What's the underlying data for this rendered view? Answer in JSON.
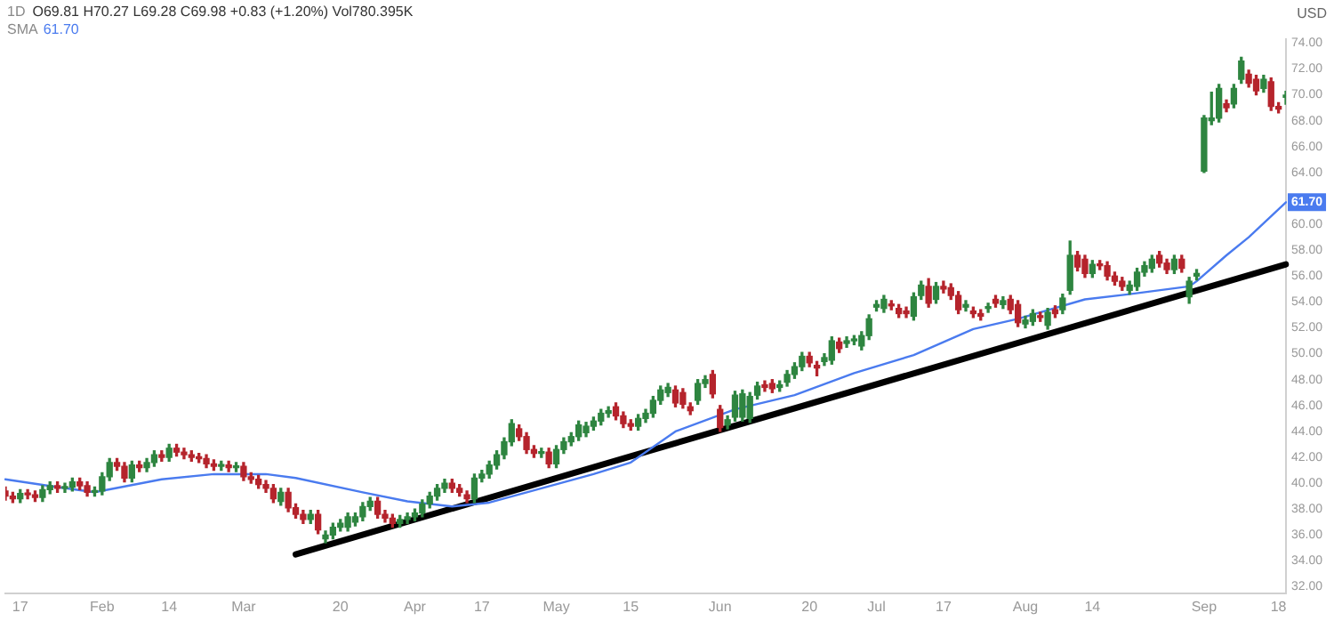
{
  "chart_data": {
    "type": "candlestick",
    "title": "1D",
    "subtitle": "O69.81 H70.27 L69.28 C69.98 +0.83 (+1.20%) Vol780.395K",
    "ylabel": "USD",
    "categories": [
      null,
      null,
      "17",
      null,
      null,
      null,
      null,
      null,
      null,
      null,
      null,
      null,
      null,
      "Feb",
      null,
      null,
      null,
      null,
      null,
      null,
      null,
      null,
      "14",
      null,
      null,
      null,
      null,
      null,
      null,
      null,
      null,
      null,
      "Mar",
      null,
      null,
      null,
      null,
      null,
      null,
      null,
      null,
      null,
      null,
      null,
      null,
      "20",
      null,
      null,
      null,
      null,
      null,
      null,
      null,
      null,
      null,
      "Apr",
      null,
      null,
      null,
      null,
      null,
      null,
      null,
      null,
      "17",
      null,
      null,
      null,
      null,
      null,
      null,
      null,
      null,
      null,
      "May",
      null,
      null,
      null,
      null,
      null,
      null,
      null,
      null,
      null,
      "15",
      null,
      null,
      null,
      null,
      null,
      null,
      null,
      null,
      null,
      null,
      null,
      "Jun",
      null,
      null,
      null,
      null,
      null,
      null,
      null,
      null,
      null,
      null,
      null,
      "20",
      null,
      null,
      null,
      null,
      null,
      null,
      null,
      null,
      "Jul",
      null,
      null,
      null,
      null,
      null,
      null,
      null,
      null,
      "17",
      null,
      null,
      null,
      null,
      null,
      null,
      null,
      null,
      null,
      null,
      "Aug",
      null,
      null,
      null,
      null,
      null,
      null,
      null,
      null,
      "14",
      null,
      null,
      null,
      null,
      null,
      null,
      null,
      null,
      null,
      null,
      null,
      null,
      null,
      null,
      "Sep",
      null,
      null,
      null,
      null,
      null,
      null,
      null,
      null,
      null,
      "18",
      null
    ],
    "ylim": [
      31.5,
      74.3
    ],
    "yticks": [
      {
        "value": 32,
        "label": "32.00"
      },
      {
        "value": 34,
        "label": "34.00"
      },
      {
        "value": 36,
        "label": "36.00"
      },
      {
        "value": 38,
        "label": "38.00"
      },
      {
        "value": 40,
        "label": "40.00"
      },
      {
        "value": 42,
        "label": "42.00"
      },
      {
        "value": 44,
        "label": "44.00"
      },
      {
        "value": 46,
        "label": "46.00"
      },
      {
        "value": 48,
        "label": "48.00"
      },
      {
        "value": 50,
        "label": "50.00"
      },
      {
        "value": 52,
        "label": "52.00"
      },
      {
        "value": 54,
        "label": "54.00"
      },
      {
        "value": 56,
        "label": "56.00"
      },
      {
        "value": 58,
        "label": "58.00"
      },
      {
        "value": 60,
        "label": "60.00"
      },
      {
        "value": 64,
        "label": "64.00"
      },
      {
        "value": 66,
        "label": "66.00"
      },
      {
        "value": 68,
        "label": "68.00"
      },
      {
        "value": 70,
        "label": "70.00"
      },
      {
        "value": 72,
        "label": "72.00"
      },
      {
        "value": 74,
        "label": "74.00"
      }
    ],
    "grid": false,
    "legend": "top left",
    "series": [
      {
        "type": "line",
        "name": "SMA",
        "color": "#4a7bef",
        "values": [
          40.3,
          null,
          null,
          null,
          null,
          null,
          null,
          39.7,
          null,
          null,
          null,
          null,
          39.3,
          null,
          null,
          null,
          null,
          null,
          null,
          null,
          null,
          40.3,
          null,
          null,
          null,
          null,
          null,
          null,
          40.7,
          null,
          null,
          null,
          null,
          null,
          null,
          40.7,
          null,
          null,
          null,
          40.4,
          null,
          null,
          null,
          null,
          null,
          null,
          null,
          null,
          39.3,
          null,
          null,
          null,
          null,
          null,
          38.6,
          null,
          null,
          null,
          null,
          null,
          38.2,
          null,
          null,
          null,
          null,
          38.5,
          null,
          null,
          null,
          null,
          null,
          null,
          39.6,
          null,
          null,
          null,
          null,
          null,
          null,
          40.7,
          null,
          null,
          null,
          null,
          41.6,
          null,
          null,
          null,
          null,
          null,
          44.0,
          null,
          null,
          null,
          null,
          null,
          null,
          null,
          45.7,
          null,
          null,
          null,
          null,
          null,
          null,
          null,
          46.8,
          null,
          null,
          null,
          null,
          null,
          null,
          null,
          48.5,
          null,
          null,
          null,
          null,
          null,
          null,
          null,
          49.9,
          null,
          null,
          null,
          null,
          null,
          null,
          null,
          51.9,
          null,
          null,
          null,
          null,
          null,
          52.7,
          null,
          null,
          null,
          null,
          null,
          null,
          null,
          null,
          54.2,
          null,
          null,
          null,
          null,
          null,
          54.6,
          null,
          null,
          null,
          null,
          null,
          null,
          null,
          55.2,
          55.6,
          null,
          null,
          null,
          57.6,
          null,
          null,
          59.0,
          null,
          null,
          null,
          null,
          61.7
        ],
        "value_labels": [
          null,
          null,
          null,
          null,
          null,
          null,
          null,
          null,
          null,
          null,
          null,
          null,
          null,
          null,
          null,
          null,
          null,
          null,
          null,
          null,
          null,
          null,
          null,
          null,
          null,
          null,
          null,
          null,
          null,
          null,
          null,
          null,
          null,
          null,
          null,
          null,
          null,
          null,
          null,
          null,
          null,
          null,
          null,
          null,
          null,
          null,
          null,
          null,
          null,
          null,
          null,
          null,
          null,
          null,
          null,
          null,
          null,
          null,
          null,
          null,
          null,
          null,
          null,
          null,
          null,
          null,
          null,
          null,
          null,
          null,
          null,
          null,
          null,
          null,
          null,
          null,
          null,
          null,
          null,
          null,
          null,
          null,
          null,
          null,
          null,
          null,
          null,
          null,
          null,
          null,
          null,
          null,
          null,
          null,
          null,
          null,
          null,
          null,
          null,
          null,
          null,
          null,
          null,
          null,
          null,
          null,
          null,
          null,
          null,
          null,
          null,
          null,
          null,
          null,
          null,
          null,
          null,
          null,
          null,
          null,
          null,
          null,
          null,
          null,
          null,
          null,
          null,
          null,
          null,
          null,
          null,
          null,
          null,
          null,
          null,
          null,
          null,
          null,
          null,
          null,
          null,
          null,
          null,
          null,
          null,
          null,
          null,
          null,
          null,
          null,
          null,
          null,
          null,
          null,
          null,
          null,
          null,
          null,
          null,
          null,
          null,
          null,
          null,
          null,
          null,
          null,
          null,
          null,
          null,
          null,
          null,
          null,
          "61.70"
        ]
      },
      {
        "type": "line",
        "color": "#000000",
        "values": [
          null,
          null,
          null,
          null,
          null,
          null,
          null,
          null,
          null,
          null,
          null,
          null,
          null,
          null,
          null,
          null,
          null,
          null,
          null,
          null,
          null,
          null,
          null,
          null,
          null,
          null,
          null,
          null,
          null,
          null,
          null,
          null,
          null,
          null,
          null,
          null,
          null,
          null,
          null,
          34.5,
          null,
          null,
          null,
          null,
          null,
          null,
          null,
          null,
          null,
          null,
          null,
          null,
          null,
          null,
          null,
          null,
          null,
          null,
          null,
          null,
          null,
          null,
          null,
          null,
          null,
          null,
          null,
          null,
          null,
          null,
          null,
          null,
          null,
          null,
          null,
          null,
          null,
          null,
          null,
          null,
          null,
          null,
          null,
          null,
          null,
          null,
          null,
          null,
          null,
          null,
          null,
          null,
          null,
          null,
          null,
          null,
          null,
          null,
          null,
          null,
          null,
          null,
          null,
          null,
          null,
          null,
          null,
          null,
          null,
          null,
          null,
          null,
          null,
          null,
          null,
          null,
          null,
          null,
          null,
          null,
          null,
          null,
          null,
          null,
          null,
          null,
          null,
          null,
          null,
          null,
          null,
          null,
          null,
          null,
          null,
          null,
          null,
          null,
          null,
          null,
          null,
          null,
          null,
          null,
          null,
          null,
          null,
          null,
          null,
          null,
          null,
          null,
          null,
          null,
          null,
          null,
          null,
          null,
          null,
          null,
          null,
          null,
          null,
          null,
          null,
          null,
          null,
          null,
          null,
          null,
          null,
          null,
          56.9
        ]
      },
      {
        "ohlc": [
          [
            39.4,
            39.7,
            38.7,
            39.0
          ],
          [
            39.0,
            39.3,
            38.5,
            38.8
          ],
          [
            38.8,
            39.5,
            38.5,
            39.2
          ],
          [
            39.2,
            39.5,
            38.8,
            39.1
          ],
          [
            39.1,
            39.4,
            38.6,
            38.9
          ],
          [
            38.9,
            39.8,
            38.6,
            39.5
          ],
          [
            39.5,
            40.1,
            39.2,
            39.8
          ],
          [
            39.8,
            40.1,
            39.3,
            39.6
          ],
          [
            39.6,
            40.0,
            39.3,
            39.7
          ],
          [
            39.7,
            40.4,
            39.4,
            40.1
          ],
          [
            40.1,
            40.4,
            39.5,
            39.8
          ],
          [
            39.8,
            40.1,
            39.0,
            39.3
          ],
          [
            39.3,
            39.7,
            39.0,
            39.4
          ],
          [
            39.4,
            40.8,
            39.1,
            40.5
          ],
          [
            40.5,
            41.9,
            40.2,
            41.6
          ],
          [
            41.6,
            41.9,
            41.0,
            41.3
          ],
          [
            41.3,
            41.6,
            40.1,
            40.4
          ],
          [
            40.4,
            41.7,
            40.1,
            41.4
          ],
          [
            41.4,
            41.7,
            40.9,
            41.2
          ],
          [
            41.2,
            41.9,
            40.9,
            41.6
          ],
          [
            41.6,
            42.5,
            41.3,
            42.2
          ],
          [
            42.2,
            42.5,
            41.7,
            42.0
          ],
          [
            42.0,
            43.0,
            41.7,
            42.7
          ],
          [
            42.7,
            43.0,
            42.1,
            42.4
          ],
          [
            42.4,
            42.7,
            41.9,
            42.2
          ],
          [
            42.2,
            42.5,
            41.7,
            42.0
          ],
          [
            42.0,
            42.3,
            41.6,
            41.9
          ],
          [
            41.9,
            42.2,
            41.2,
            41.5
          ],
          [
            41.5,
            41.8,
            41.0,
            41.3
          ],
          [
            41.3,
            41.7,
            41.0,
            41.4
          ],
          [
            41.4,
            41.7,
            40.9,
            41.2
          ],
          [
            41.2,
            41.6,
            40.9,
            41.3
          ],
          [
            41.3,
            41.6,
            40.2,
            40.5
          ],
          [
            40.5,
            40.8,
            40.0,
            40.3
          ],
          [
            40.3,
            40.6,
            39.6,
            39.9
          ],
          [
            39.9,
            40.2,
            39.3,
            39.6
          ],
          [
            39.6,
            39.9,
            38.5,
            38.8
          ],
          [
            38.6,
            39.6,
            38.3,
            39.3
          ],
          [
            39.3,
            39.6,
            37.8,
            38.1
          ],
          [
            38.1,
            38.4,
            37.3,
            37.6
          ],
          [
            37.6,
            37.9,
            36.9,
            37.2
          ],
          [
            37.2,
            37.9,
            36.9,
            37.6
          ],
          [
            37.6,
            37.9,
            36.1,
            36.4
          ],
          [
            35.7,
            36.3,
            35.4,
            36.0
          ],
          [
            36.0,
            36.9,
            35.7,
            36.6
          ],
          [
            36.6,
            37.2,
            36.3,
            36.9
          ],
          [
            36.6,
            37.7,
            36.3,
            37.4
          ],
          [
            37.0,
            37.7,
            36.7,
            37.4
          ],
          [
            37.4,
            38.5,
            37.1,
            38.2
          ],
          [
            38.2,
            38.9,
            37.9,
            38.6
          ],
          [
            38.6,
            38.9,
            37.3,
            37.6
          ],
          [
            37.6,
            37.9,
            37.0,
            37.3
          ],
          [
            37.3,
            37.6,
            36.6,
            36.9
          ],
          [
            36.9,
            37.5,
            36.6,
            37.2
          ],
          [
            37.2,
            37.7,
            36.9,
            37.4
          ],
          [
            37.4,
            38.0,
            37.1,
            37.7
          ],
          [
            37.7,
            38.7,
            37.4,
            38.4
          ],
          [
            38.4,
            39.3,
            38.1,
            39.0
          ],
          [
            39.0,
            39.9,
            38.7,
            39.6
          ],
          [
            39.6,
            40.3,
            39.3,
            40.0
          ],
          [
            40.0,
            40.3,
            39.3,
            39.6
          ],
          [
            39.6,
            39.9,
            39.0,
            39.3
          ],
          [
            39.1,
            39.4,
            38.5,
            38.8
          ],
          [
            38.8,
            40.7,
            38.5,
            40.4
          ],
          [
            40.4,
            41.0,
            40.1,
            40.7
          ],
          [
            40.7,
            41.7,
            40.4,
            41.4
          ],
          [
            41.4,
            42.5,
            41.1,
            42.2
          ],
          [
            42.2,
            43.5,
            41.9,
            43.2
          ],
          [
            43.2,
            44.9,
            42.9,
            44.6
          ],
          [
            44.2,
            44.5,
            43.3,
            43.6
          ],
          [
            43.6,
            43.9,
            42.3,
            42.6
          ],
          [
            42.6,
            42.9,
            42.0,
            42.3
          ],
          [
            42.3,
            42.7,
            42.0,
            42.4
          ],
          [
            42.4,
            42.7,
            41.2,
            41.5
          ],
          [
            41.5,
            42.9,
            41.2,
            42.6
          ],
          [
            42.6,
            43.5,
            42.3,
            43.2
          ],
          [
            43.2,
            43.9,
            42.9,
            43.6
          ],
          [
            43.6,
            44.8,
            43.3,
            44.5
          ],
          [
            43.9,
            44.7,
            43.6,
            44.4
          ],
          [
            44.4,
            45.1,
            44.1,
            44.8
          ],
          [
            44.8,
            45.7,
            44.5,
            45.4
          ],
          [
            45.4,
            45.9,
            45.1,
            45.6
          ],
          [
            45.9,
            46.2,
            44.9,
            45.2
          ],
          [
            45.2,
            45.5,
            44.3,
            44.6
          ],
          [
            44.6,
            44.9,
            44.1,
            44.4
          ],
          [
            44.4,
            45.3,
            44.1,
            45.0
          ],
          [
            45.0,
            45.7,
            44.7,
            45.4
          ],
          [
            45.4,
            46.7,
            45.1,
            46.4
          ],
          [
            46.4,
            47.5,
            46.1,
            47.2
          ],
          [
            47.0,
            47.7,
            46.7,
            47.4
          ],
          [
            47.2,
            47.5,
            45.9,
            46.2
          ],
          [
            47.0,
            47.3,
            45.8,
            46.1
          ],
          [
            45.9,
            46.2,
            45.3,
            45.6
          ],
          [
            46.4,
            48.0,
            46.1,
            47.7
          ],
          [
            47.7,
            48.3,
            47.4,
            48.0
          ],
          [
            48.4,
            48.7,
            46.6,
            46.9
          ],
          [
            45.7,
            46.0,
            44.0,
            44.3
          ],
          [
            44.5,
            45.2,
            44.2,
            44.9
          ],
          [
            45.1,
            47.1,
            44.8,
            46.8
          ],
          [
            45.1,
            47.2,
            44.8,
            46.9
          ],
          [
            45.0,
            47.0,
            44.7,
            46.7
          ],
          [
            46.8,
            47.8,
            46.5,
            47.5
          ],
          [
            47.6,
            47.9,
            47.1,
            47.4
          ],
          [
            47.7,
            48.0,
            47.0,
            47.3
          ],
          [
            47.4,
            47.9,
            47.1,
            47.6
          ],
          [
            47.8,
            48.7,
            47.5,
            48.4
          ],
          [
            48.4,
            49.3,
            48.1,
            49.0
          ],
          [
            49.0,
            50.1,
            48.7,
            49.8
          ],
          [
            49.8,
            50.1,
            49.0,
            49.3
          ],
          [
            49.1,
            49.4,
            48.3,
            48.9
          ],
          [
            49.4,
            50.0,
            49.1,
            49.7
          ],
          [
            49.5,
            51.3,
            49.2,
            51.0
          ],
          [
            50.9,
            51.2,
            50.1,
            50.4
          ],
          [
            50.8,
            51.3,
            50.5,
            51.0
          ],
          [
            51.0,
            51.4,
            50.7,
            51.1
          ],
          [
            50.6,
            51.7,
            50.3,
            51.4
          ],
          [
            51.4,
            53.0,
            51.1,
            52.7
          ],
          [
            53.6,
            54.1,
            53.3,
            53.8
          ],
          [
            53.5,
            54.5,
            53.2,
            54.2
          ],
          [
            53.8,
            54.1,
            53.4,
            53.7
          ],
          [
            53.5,
            53.8,
            52.8,
            53.1
          ],
          [
            53.3,
            53.6,
            52.8,
            53.1
          ],
          [
            52.9,
            54.7,
            52.6,
            54.4
          ],
          [
            54.5,
            55.6,
            54.2,
            55.3
          ],
          [
            55.2,
            55.8,
            53.6,
            53.9
          ],
          [
            54.2,
            55.5,
            53.9,
            55.2
          ],
          [
            55.2,
            55.6,
            54.7,
            55.0
          ],
          [
            55.1,
            55.4,
            54.2,
            54.5
          ],
          [
            54.5,
            54.8,
            53.1,
            53.4
          ],
          [
            53.6,
            54.1,
            53.3,
            53.8
          ],
          [
            53.3,
            53.6,
            52.8,
            53.1
          ],
          [
            53.1,
            53.4,
            52.6,
            52.9
          ],
          [
            53.5,
            53.9,
            53.2,
            53.6
          ],
          [
            54.2,
            54.5,
            53.6,
            53.9
          ],
          [
            53.8,
            54.4,
            53.5,
            54.1
          ],
          [
            54.2,
            54.5,
            53.1,
            53.4
          ],
          [
            53.8,
            54.1,
            52.1,
            52.4
          ],
          [
            52.3,
            52.9,
            52.0,
            52.6
          ],
          [
            52.5,
            53.4,
            52.2,
            53.1
          ],
          [
            52.9,
            53.2,
            52.5,
            52.8
          ],
          [
            52.2,
            53.5,
            51.9,
            53.2
          ],
          [
            53.4,
            53.7,
            52.8,
            53.1
          ],
          [
            53.4,
            54.6,
            53.1,
            54.3
          ],
          [
            54.9,
            58.7,
            54.6,
            57.6
          ],
          [
            57.6,
            57.9,
            56.4,
            56.7
          ],
          [
            57.3,
            57.6,
            55.9,
            56.2
          ],
          [
            56.2,
            57.2,
            55.9,
            56.9
          ],
          [
            56.9,
            57.2,
            56.5,
            56.8
          ],
          [
            56.8,
            57.1,
            55.7,
            56.0
          ],
          [
            56.0,
            56.3,
            55.3,
            55.6
          ],
          [
            55.6,
            55.9,
            54.9,
            55.2
          ],
          [
            54.9,
            55.6,
            54.6,
            55.3
          ],
          [
            55.2,
            56.6,
            54.9,
            56.3
          ],
          [
            56.3,
            57.1,
            56.0,
            56.8
          ],
          [
            56.6,
            57.6,
            56.3,
            57.3
          ],
          [
            57.6,
            57.9,
            56.7,
            57.0
          ],
          [
            57.0,
            57.3,
            56.2,
            56.5
          ],
          [
            56.5,
            57.6,
            56.2,
            57.3
          ],
          [
            57.3,
            57.6,
            56.3,
            56.6
          ],
          [
            54.4,
            55.9,
            53.9,
            55.6
          ],
          [
            56.0,
            56.5,
            55.7,
            56.2
          ],
          [
            64.1,
            68.4,
            64.0,
            68.2
          ],
          [
            68.0,
            70.2,
            67.7,
            68.2
          ],
          [
            68.2,
            70.8,
            67.9,
            70.5
          ],
          [
            69.3,
            69.6,
            68.7,
            69.0
          ],
          [
            69.3,
            70.8,
            69.0,
            70.5
          ],
          [
            71.2,
            72.9,
            70.9,
            72.6
          ],
          [
            71.6,
            71.9,
            70.6,
            70.9
          ],
          [
            71.2,
            71.5,
            70.0,
            70.3
          ],
          [
            70.5,
            71.5,
            70.2,
            71.2
          ],
          [
            71.0,
            71.3,
            68.8,
            69.1
          ],
          [
            69.1,
            69.4,
            68.6,
            68.9
          ],
          [
            69.81,
            70.27,
            69.28,
            69.98
          ]
        ],
        "colors": [
          "#b5242c",
          "#b5242c",
          "#2e8540",
          "#b5242c",
          "#b5242c",
          "#2e8540",
          "#2e8540",
          "#b5242c",
          "#2e8540",
          "#2e8540",
          "#b5242c",
          "#b5242c",
          "#2e8540",
          "#2e8540",
          "#2e8540",
          "#b5242c",
          "#b5242c",
          "#2e8540",
          "#b5242c",
          "#2e8540",
          "#2e8540",
          "#b5242c",
          "#2e8540",
          "#b5242c",
          "#b5242c",
          "#b5242c",
          "#b5242c",
          "#b5242c",
          "#b5242c",
          "#2e8540",
          "#b5242c",
          "#2e8540",
          "#b5242c",
          "#b5242c",
          "#b5242c",
          "#b5242c",
          "#b5242c",
          "#2e8540",
          "#b5242c",
          "#b5242c",
          "#b5242c",
          "#2e8540",
          "#b5242c",
          "#2e8540",
          "#2e8540",
          "#2e8540",
          "#2e8540",
          "#2e8540",
          "#2e8540",
          "#2e8540",
          "#b5242c",
          "#b5242c",
          "#b5242c",
          "#2e8540",
          "#2e8540",
          "#2e8540",
          "#2e8540",
          "#2e8540",
          "#2e8540",
          "#2e8540",
          "#b5242c",
          "#b5242c",
          "#b5242c",
          "#2e8540",
          "#2e8540",
          "#2e8540",
          "#2e8540",
          "#2e8540",
          "#2e8540",
          "#b5242c",
          "#b5242c",
          "#b5242c",
          "#2e8540",
          "#b5242c",
          "#2e8540",
          "#2e8540",
          "#2e8540",
          "#2e8540",
          "#2e8540",
          "#2e8540",
          "#2e8540",
          "#2e8540",
          "#b5242c",
          "#b5242c",
          "#b5242c",
          "#2e8540",
          "#2e8540",
          "#2e8540",
          "#2e8540",
          "#2e8540",
          "#b5242c",
          "#b5242c",
          "#b5242c",
          "#2e8540",
          "#2e8540",
          "#b5242c",
          "#b5242c",
          "#2e8540",
          "#2e8540",
          "#2e8540",
          "#2e8540",
          "#2e8540",
          "#b5242c",
          "#b5242c",
          "#2e8540",
          "#2e8540",
          "#2e8540",
          "#2e8540",
          "#b5242c",
          "#b5242c",
          "#2e8540",
          "#2e8540",
          "#b5242c",
          "#2e8540",
          "#2e8540",
          "#2e8540",
          "#2e8540",
          "#2e8540",
          "#2e8540",
          "#b5242c",
          "#b5242c",
          "#b5242c",
          "#2e8540",
          "#2e8540",
          "#b5242c",
          "#2e8540",
          "#b5242c",
          "#b5242c",
          "#b5242c",
          "#2e8540",
          "#b5242c",
          "#b5242c",
          "#2e8540",
          "#b5242c",
          "#2e8540",
          "#b5242c",
          "#b5242c",
          "#2e8540",
          "#2e8540",
          "#b5242c",
          "#2e8540",
          "#b5242c",
          "#2e8540",
          "#2e8540",
          "#b5242c",
          "#b5242c",
          "#2e8540",
          "#b5242c",
          "#b5242c",
          "#b5242c",
          "#b5242c",
          "#2e8540",
          "#2e8540",
          "#2e8540",
          "#2e8540",
          "#b5242c",
          "#b5242c",
          "#2e8540",
          "#b5242c",
          "#2e8540",
          "#2e8540",
          "#2e8540",
          "#2e8540",
          "#2e8540",
          "#b5242c",
          "#2e8540",
          "#2e8540",
          "#b5242c",
          "#b5242c",
          "#2e8540",
          "#b5242c",
          "#b5242c",
          "#2e8540"
        ]
      }
    ]
  }
}
